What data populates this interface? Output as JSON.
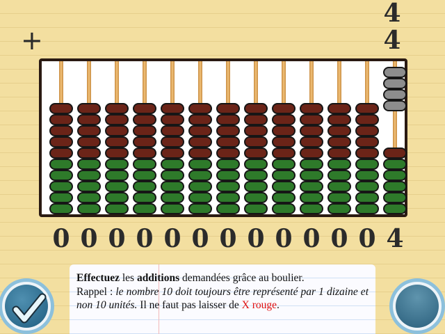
{
  "operand": {
    "digits": [
      "4",
      "4"
    ],
    "operator": "+"
  },
  "abacus": {
    "columns": [
      {
        "digit": "0",
        "lower_red": 5,
        "lower_green": 5,
        "upper_grey": 0
      },
      {
        "digit": "0",
        "lower_red": 5,
        "lower_green": 5,
        "upper_grey": 0
      },
      {
        "digit": "0",
        "lower_red": 5,
        "lower_green": 5,
        "upper_grey": 0
      },
      {
        "digit": "0",
        "lower_red": 5,
        "lower_green": 5,
        "upper_grey": 0
      },
      {
        "digit": "0",
        "lower_red": 5,
        "lower_green": 5,
        "upper_grey": 0
      },
      {
        "digit": "0",
        "lower_red": 5,
        "lower_green": 5,
        "upper_grey": 0
      },
      {
        "digit": "0",
        "lower_red": 5,
        "lower_green": 5,
        "upper_grey": 0
      },
      {
        "digit": "0",
        "lower_red": 5,
        "lower_green": 5,
        "upper_grey": 0
      },
      {
        "digit": "0",
        "lower_red": 5,
        "lower_green": 5,
        "upper_grey": 0
      },
      {
        "digit": "0",
        "lower_red": 5,
        "lower_green": 5,
        "upper_grey": 0
      },
      {
        "digit": "0",
        "lower_red": 5,
        "lower_green": 5,
        "upper_grey": 0
      },
      {
        "digit": "0",
        "lower_red": 5,
        "lower_green": 5,
        "upper_grey": 0
      },
      {
        "digit": "4",
        "lower_red": 1,
        "lower_green": 5,
        "upper_grey": 4
      }
    ]
  },
  "instructions": {
    "part1": "Effectuez",
    "part2": " les ",
    "part3": "additions",
    "part4": " demandées grâce au boulier.",
    "part5": "Rappel : ",
    "part6": "le nombre 10 doit toujours être représenté par 1 dizaine et non 10 unités.",
    "part7": " Il ne faut pas laisser de ",
    "part8": "X rouge",
    "part9": "."
  },
  "colors": {
    "bead_red": "#6b2418",
    "bead_green": "#2e7a2a",
    "bead_grey": "#8d8d8d",
    "highlight_red": "#e01010"
  },
  "icons": {
    "validate": "check-icon"
  }
}
